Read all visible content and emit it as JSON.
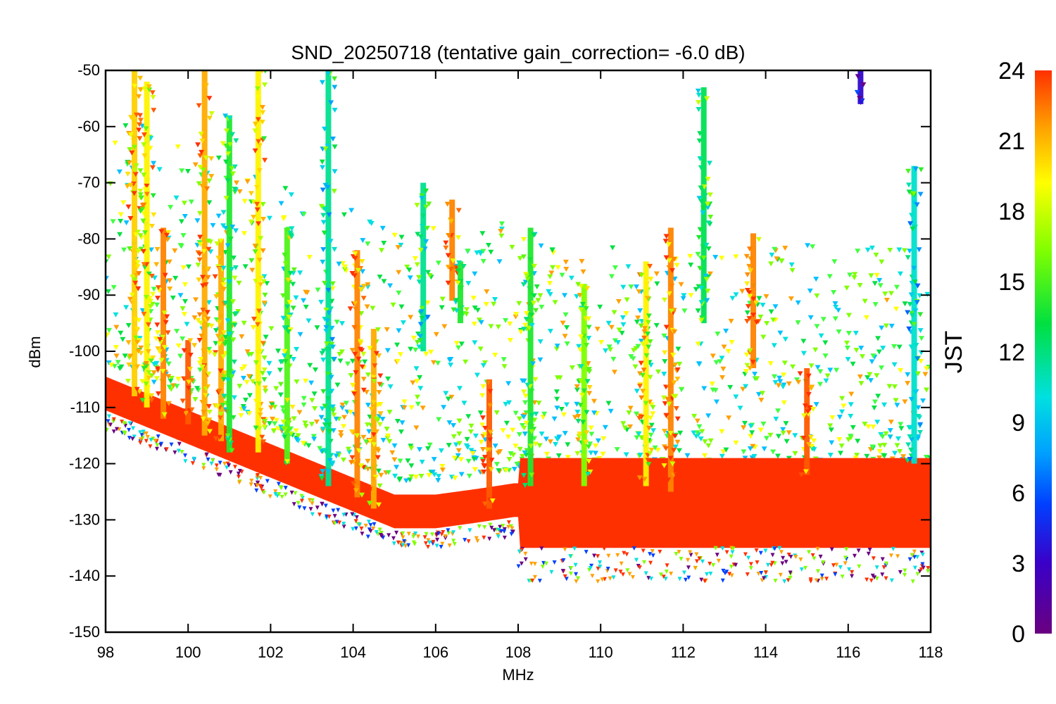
{
  "chart_data": {
    "type": "scatter",
    "title": "SND_20250718 (tentative gain_correction= -6.0 dB)",
    "xlabel": "MHz",
    "ylabel": "dBm",
    "xlim": [
      98,
      118
    ],
    "ylim": [
      -150,
      -50
    ],
    "x_ticks": [
      "98",
      "100",
      "102",
      "104",
      "106",
      "108",
      "110",
      "112",
      "114",
      "116",
      "118"
    ],
    "y_ticks": [
      "-50",
      "-60",
      "-70",
      "-80",
      "-90",
      "-100",
      "-110",
      "-120",
      "-130",
      "-140",
      "-150"
    ],
    "colorbar": {
      "label": "JST",
      "range": [
        0,
        24
      ],
      "ticks": [
        "24",
        "21",
        "18",
        "15",
        "12",
        "9",
        "6",
        "3",
        "0"
      ],
      "colormap": [
        "#6a0080",
        "#3a00c8",
        "#0040ff",
        "#00a0ff",
        "#00e0e0",
        "#00e040",
        "#80ff00",
        "#ffff00",
        "#ffa000",
        "#ff3000"
      ]
    },
    "noise_floor": [
      {
        "x": 98.0,
        "y": -108
      },
      {
        "x": 100.0,
        "y": -114
      },
      {
        "x": 102.0,
        "y": -120
      },
      {
        "x": 104.0,
        "y": -126
      },
      {
        "x": 105.0,
        "y": -129
      },
      {
        "x": 106.0,
        "y": -129
      },
      {
        "x": 107.0,
        "y": -128
      },
      {
        "x": 107.9,
        "y": -127
      },
      {
        "x": 108.0,
        "y": -127
      },
      {
        "x": 118.0,
        "y": -127
      }
    ],
    "signals": [
      {
        "x": 98.7,
        "y_top": -50,
        "y_bottom": -108,
        "jst": 20
      },
      {
        "x": 99.0,
        "y_top": -52,
        "y_bottom": -110,
        "jst": 19
      },
      {
        "x": 99.4,
        "y_top": -78,
        "y_bottom": -112,
        "jst": 22
      },
      {
        "x": 100.0,
        "y_top": -98,
        "y_bottom": -113,
        "jst": 23
      },
      {
        "x": 100.4,
        "y_top": -50,
        "y_bottom": -115,
        "jst": 21
      },
      {
        "x": 100.8,
        "y_top": -80,
        "y_bottom": -116,
        "jst": 21
      },
      {
        "x": 101.0,
        "y_top": -58,
        "y_bottom": -118,
        "jst": 14
      },
      {
        "x": 101.7,
        "y_top": -50,
        "y_bottom": -118,
        "jst": 19
      },
      {
        "x": 102.4,
        "y_top": -78,
        "y_bottom": -120,
        "jst": 15
      },
      {
        "x": 103.4,
        "y_top": -50,
        "y_bottom": -124,
        "jst": 12
      },
      {
        "x": 104.1,
        "y_top": -82,
        "y_bottom": -126,
        "jst": 22
      },
      {
        "x": 104.5,
        "y_top": -96,
        "y_bottom": -128,
        "jst": 21
      },
      {
        "x": 105.7,
        "y_top": -70,
        "y_bottom": -100,
        "jst": 12
      },
      {
        "x": 106.4,
        "y_top": -73,
        "y_bottom": -91,
        "jst": 22
      },
      {
        "x": 106.6,
        "y_top": -84,
        "y_bottom": -95,
        "jst": 14
      },
      {
        "x": 107.3,
        "y_top": -105,
        "y_bottom": -128,
        "jst": 23
      },
      {
        "x": 108.3,
        "y_top": -78,
        "y_bottom": -124,
        "jst": 14
      },
      {
        "x": 109.6,
        "y_top": -88,
        "y_bottom": -124,
        "jst": 16
      },
      {
        "x": 111.1,
        "y_top": -84,
        "y_bottom": -124,
        "jst": 19
      },
      {
        "x": 111.7,
        "y_top": -78,
        "y_bottom": -125,
        "jst": 22
      },
      {
        "x": 112.5,
        "y_top": -53,
        "y_bottom": -95,
        "jst": 13
      },
      {
        "x": 113.7,
        "y_top": -79,
        "y_bottom": -103,
        "jst": 22
      },
      {
        "x": 115.0,
        "y_top": -103,
        "y_bottom": -122,
        "jst": 23
      },
      {
        "x": 116.3,
        "y_top": -50,
        "y_bottom": -56,
        "jst": 3
      },
      {
        "x": 117.6,
        "y_top": -67,
        "y_bottom": -120,
        "jst": 11
      }
    ]
  }
}
